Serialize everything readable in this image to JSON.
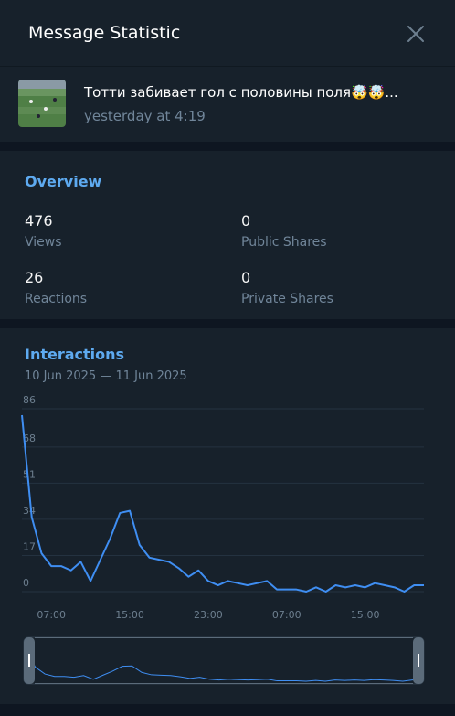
{
  "header": {
    "title": "Message Statistic"
  },
  "message": {
    "title": "Тотти забивает гол с половины поля🤯🤯...",
    "date": "yesterday at 4:19"
  },
  "overview": {
    "title": "Overview",
    "stats": [
      {
        "value": 476,
        "label": "Views"
      },
      {
        "value": 0,
        "label": "Public Shares"
      },
      {
        "value": 26,
        "label": "Reactions"
      },
      {
        "value": 0,
        "label": "Private Shares"
      }
    ]
  },
  "chart_data": {
    "type": "line",
    "title": "Interactions",
    "subtitle": "10 Jun 2025 — 11 Jun 2025",
    "categories": [
      null,
      null,
      null,
      "07:00",
      null,
      null,
      null,
      null,
      null,
      null,
      null,
      "15:00",
      null,
      null,
      null,
      null,
      null,
      null,
      null,
      "23:00",
      null,
      null,
      null,
      null,
      null,
      null,
      null,
      "07:00",
      null,
      null,
      null,
      null,
      null,
      null,
      null,
      "15:00",
      null,
      null,
      null,
      null,
      null,
      null
    ],
    "series": [
      {
        "name": "Interactions",
        "color": "#3f8ef2",
        "values": [
          83,
          35,
          18,
          12,
          12,
          10,
          14,
          5,
          15,
          25,
          37,
          38,
          22,
          16,
          15,
          14,
          11,
          7,
          10,
          5,
          3,
          5,
          4,
          3,
          4,
          5,
          1,
          1,
          1,
          0,
          2,
          0,
          3,
          2,
          3,
          2,
          4,
          3,
          2,
          0,
          3,
          3
        ]
      }
    ],
    "ylim": [
      0,
      86
    ],
    "yticks": [
      0,
      17,
      34,
      51,
      68,
      86
    ],
    "grid": true
  }
}
